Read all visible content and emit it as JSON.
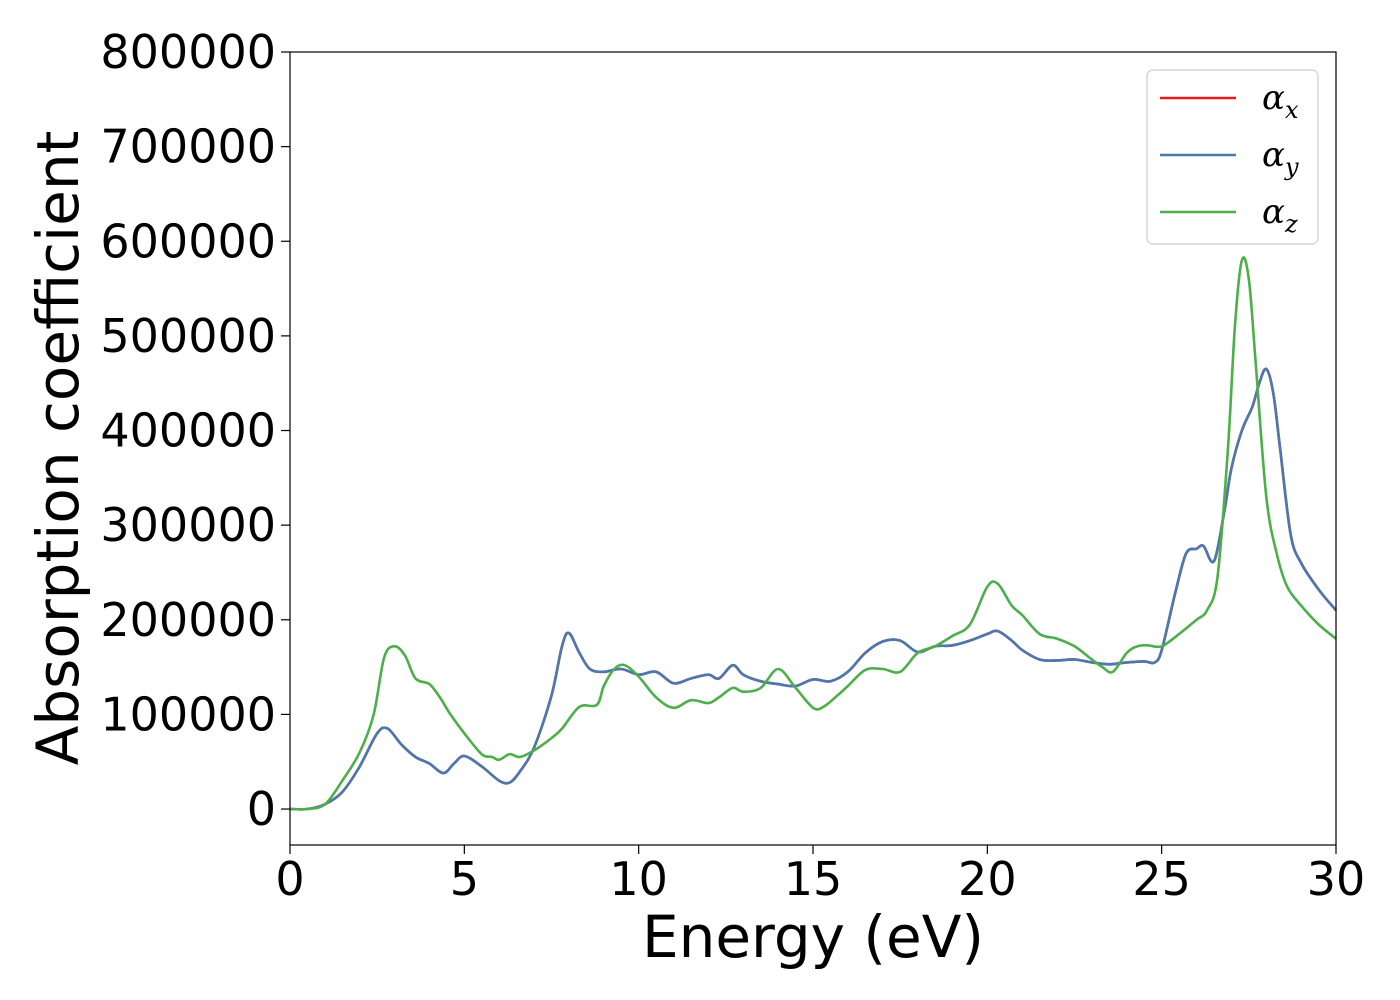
{
  "chart_data": {
    "type": "line",
    "xlabel": "Energy (eV)",
    "ylabel": "Absorption coefficient",
    "xlim": [
      0,
      30
    ],
    "ylim": [
      -38000,
      800000
    ],
    "xticks": [
      0,
      5,
      10,
      15,
      20,
      25,
      30
    ],
    "yticks": [
      0,
      100000,
      200000,
      300000,
      400000,
      500000,
      600000,
      700000,
      800000
    ],
    "grid": false,
    "legend_position": "top-right",
    "series": [
      {
        "name": "α_x",
        "symbol": "α",
        "sub": "x",
        "color": "#e41a1c",
        "x": [
          0,
          0.5,
          1.0,
          1.5,
          2.0,
          2.5,
          2.8,
          3.2,
          3.6,
          4.0,
          4.4,
          4.7,
          5.0,
          5.5,
          6.0,
          6.3,
          6.6,
          7.0,
          7.5,
          7.8,
          8.0,
          8.3,
          8.6,
          9.0,
          9.5,
          10.0,
          10.5,
          11.0,
          11.5,
          12.0,
          12.3,
          12.7,
          13.0,
          13.5,
          14.0,
          14.5,
          15.0,
          15.5,
          16.0,
          16.5,
          17.0,
          17.5,
          18.0,
          18.5,
          19.0,
          19.5,
          20.0,
          20.3,
          20.7,
          21.0,
          21.5,
          22.0,
          22.5,
          23.0,
          23.5,
          24.0,
          24.5,
          24.8,
          25.0,
          25.4,
          25.7,
          26.0,
          26.2,
          26.5,
          26.8,
          27.0,
          27.3,
          27.6,
          27.8,
          28.0,
          28.2,
          28.4,
          28.7,
          29.0,
          29.5,
          30.0
        ],
        "y": [
          0,
          0,
          5000,
          18000,
          45000,
          80000,
          85000,
          68000,
          55000,
          48000,
          38000,
          48000,
          56000,
          45000,
          30000,
          28000,
          40000,
          65000,
          120000,
          172000,
          186000,
          165000,
          148000,
          145000,
          148000,
          142000,
          145000,
          133000,
          138000,
          142000,
          138000,
          152000,
          142000,
          135000,
          132000,
          130000,
          137000,
          135000,
          145000,
          165000,
          177000,
          178000,
          166000,
          172000,
          173000,
          178000,
          185000,
          188000,
          178000,
          168000,
          158000,
          157000,
          158000,
          155000,
          153000,
          155000,
          156000,
          155000,
          168000,
          230000,
          270000,
          275000,
          278000,
          262000,
          315000,
          360000,
          400000,
          425000,
          450000,
          465000,
          440000,
          380000,
          290000,
          260000,
          232000,
          210000
        ]
      },
      {
        "name": "α_y",
        "symbol": "α",
        "sub": "y",
        "color": "#4a78b0",
        "x": [
          0,
          0.5,
          1.0,
          1.5,
          2.0,
          2.5,
          2.8,
          3.2,
          3.6,
          4.0,
          4.4,
          4.7,
          5.0,
          5.5,
          6.0,
          6.3,
          6.6,
          7.0,
          7.5,
          7.8,
          8.0,
          8.3,
          8.6,
          9.0,
          9.5,
          10.0,
          10.5,
          11.0,
          11.5,
          12.0,
          12.3,
          12.7,
          13.0,
          13.5,
          14.0,
          14.5,
          15.0,
          15.5,
          16.0,
          16.5,
          17.0,
          17.5,
          18.0,
          18.5,
          19.0,
          19.5,
          20.0,
          20.3,
          20.7,
          21.0,
          21.5,
          22.0,
          22.5,
          23.0,
          23.5,
          24.0,
          24.5,
          24.8,
          25.0,
          25.4,
          25.7,
          26.0,
          26.2,
          26.5,
          26.8,
          27.0,
          27.3,
          27.6,
          27.8,
          28.0,
          28.2,
          28.4,
          28.7,
          29.0,
          29.5,
          30.0
        ],
        "y": [
          0,
          0,
          5000,
          18000,
          45000,
          80000,
          85000,
          68000,
          55000,
          48000,
          38000,
          48000,
          56000,
          45000,
          30000,
          28000,
          40000,
          65000,
          120000,
          172000,
          186000,
          165000,
          148000,
          145000,
          148000,
          142000,
          145000,
          133000,
          138000,
          142000,
          138000,
          152000,
          142000,
          135000,
          132000,
          130000,
          137000,
          135000,
          145000,
          165000,
          177000,
          178000,
          166000,
          172000,
          173000,
          178000,
          185000,
          188000,
          178000,
          168000,
          158000,
          157000,
          158000,
          155000,
          153000,
          155000,
          156000,
          155000,
          168000,
          230000,
          270000,
          275000,
          278000,
          262000,
          315000,
          360000,
          400000,
          425000,
          450000,
          465000,
          440000,
          380000,
          290000,
          260000,
          232000,
          210000
        ]
      },
      {
        "name": "α_z",
        "symbol": "α",
        "sub": "z",
        "color": "#4daf4a",
        "x": [
          0,
          0.5,
          1.0,
          1.5,
          2.0,
          2.4,
          2.7,
          3.0,
          3.3,
          3.6,
          4.0,
          4.3,
          4.6,
          5.0,
          5.5,
          5.8,
          6.0,
          6.3,
          6.6,
          7.0,
          7.5,
          7.8,
          8.3,
          8.8,
          9.0,
          9.3,
          9.6,
          10.0,
          10.5,
          11.0,
          11.5,
          12.0,
          12.3,
          12.7,
          13.0,
          13.5,
          14.0,
          14.5,
          15.0,
          15.3,
          15.7,
          16.0,
          16.5,
          17.0,
          17.5,
          18.0,
          18.5,
          19.0,
          19.5,
          20.0,
          20.3,
          20.7,
          21.0,
          21.5,
          22.0,
          22.5,
          23.0,
          23.3,
          23.6,
          24.0,
          24.3,
          24.6,
          25.0,
          25.5,
          26.0,
          26.3,
          26.6,
          26.9,
          27.1,
          27.3,
          27.5,
          27.7,
          28.0,
          28.3,
          28.6,
          29.0,
          29.5,
          30.0
        ],
        "y": [
          0,
          0,
          5000,
          30000,
          60000,
          100000,
          160000,
          172000,
          162000,
          138000,
          132000,
          118000,
          100000,
          80000,
          58000,
          55000,
          52000,
          58000,
          55000,
          62000,
          75000,
          85000,
          108000,
          110000,
          130000,
          148000,
          152000,
          140000,
          118000,
          107000,
          115000,
          112000,
          118000,
          128000,
          124000,
          128000,
          148000,
          128000,
          107000,
          108000,
          120000,
          130000,
          147000,
          148000,
          145000,
          165000,
          172000,
          183000,
          195000,
          235000,
          238000,
          215000,
          205000,
          185000,
          180000,
          172000,
          158000,
          150000,
          145000,
          165000,
          172000,
          173000,
          172000,
          185000,
          200000,
          210000,
          245000,
          380000,
          510000,
          580000,
          560000,
          470000,
          330000,
          270000,
          235000,
          215000,
          195000,
          180000
        ]
      }
    ]
  }
}
